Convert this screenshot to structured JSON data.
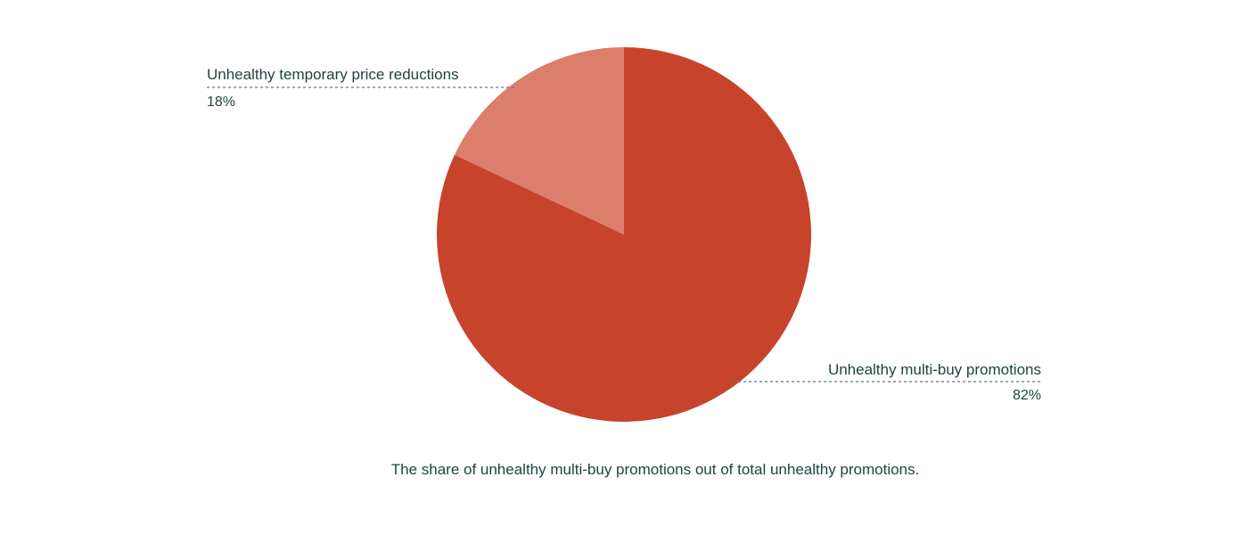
{
  "chart_data": {
    "type": "pie",
    "title": "",
    "caption": "The share of unhealthy multi-buy promotions out of total unhealthy promotions.",
    "slices": [
      {
        "label": "Unhealthy multi-buy promotions",
        "value": 82,
        "value_label": "82%",
        "color": "#c8432c"
      },
      {
        "label": "Unhealthy temporary price reductions",
        "value": 18,
        "value_label": "18%",
        "color": "#db7e6c"
      }
    ],
    "legend": "none"
  }
}
